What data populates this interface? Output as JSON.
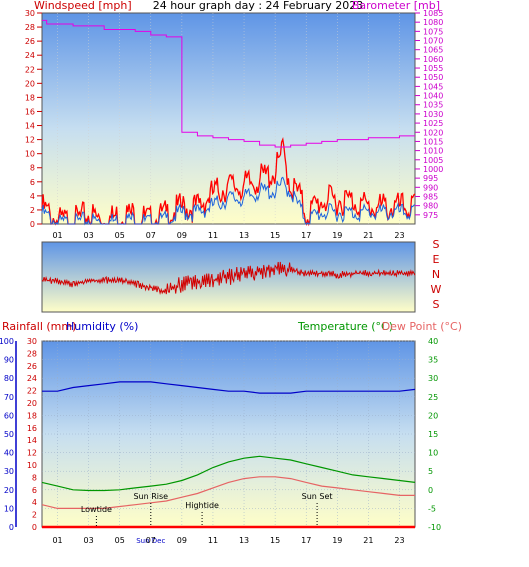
{
  "chart_data": [
    {
      "type": "line",
      "title": "24 hour graph day : 24 February 2023",
      "ylabel": "Windspeed [mph]",
      "y2label": "Barometer [mb]",
      "ylim": [
        0,
        30
      ],
      "y2lim": [
        970,
        1085
      ],
      "yticks": [
        0,
        2,
        4,
        6,
        8,
        10,
        12,
        14,
        16,
        18,
        20,
        22,
        24,
        26,
        28,
        30
      ],
      "yticklabels": [
        "0",
        "2",
        "4",
        "6",
        "8",
        "10",
        "12",
        "14",
        "16",
        "18",
        "20",
        "22",
        "24",
        "26",
        "28",
        "30"
      ],
      "y2ticks": [
        975,
        980,
        985,
        990,
        995,
        1000,
        1005,
        1010,
        1015,
        1020,
        1025,
        1030,
        1035,
        1040,
        1045,
        1050,
        1055,
        1060,
        1065,
        1070,
        1075,
        1080,
        1085
      ],
      "y2ticklabels": [
        "975",
        "980",
        "985",
        "990",
        "995",
        "1000",
        "1005",
        "1010",
        "1015",
        "1020",
        "1025",
        "1030",
        "1035",
        "1040",
        "1045",
        "1050",
        "1055",
        "1060",
        "1065",
        "1070",
        "1075",
        "1080",
        "1085"
      ],
      "xticklabels": [
        "01",
        "03",
        "05",
        "07",
        "09",
        "11",
        "13",
        "15",
        "17",
        "19",
        "21",
        "23"
      ],
      "xlim": [
        0,
        24
      ],
      "series": [
        {
          "key": "gust",
          "color": "#ff0000",
          "x": [
            0,
            1,
            2,
            3,
            4,
            5,
            6,
            7,
            8,
            9,
            10,
            11,
            12,
            13,
            14,
            15,
            15.5,
            16,
            16.5,
            17,
            18,
            19,
            20,
            21,
            22,
            23,
            24
          ],
          "y": [
            3,
            1,
            1,
            2,
            1,
            2,
            2,
            1,
            2,
            3,
            3,
            5,
            6,
            6,
            7,
            8,
            11,
            6,
            5,
            2,
            4,
            4,
            4,
            3,
            3,
            3,
            3
          ]
        },
        {
          "key": "average",
          "color": "#1e64dc",
          "x": [
            0,
            1,
            2,
            3,
            4,
            5,
            6,
            7,
            8,
            9,
            10,
            11,
            12,
            13,
            14,
            15,
            15.5,
            16,
            16.5,
            17,
            18,
            19,
            20,
            21,
            22,
            23,
            24
          ],
          "y": [
            2,
            0.5,
            0.5,
            1,
            0.5,
            1,
            1,
            0.5,
            1,
            2,
            2,
            3,
            4,
            4,
            5,
            5,
            6,
            5,
            3,
            1,
            2,
            2,
            2,
            2,
            2,
            2,
            2
          ]
        },
        {
          "key": "barometer",
          "axis": "y2",
          "color": "#e600e6",
          "x": [
            0,
            0.3,
            2,
            4,
            6,
            7,
            8,
            9,
            10,
            11,
            12,
            13,
            14,
            15,
            16,
            17,
            18,
            19,
            20,
            21,
            22,
            23,
            24
          ],
          "y": [
            1081,
            1079,
            1078,
            1076,
            1075,
            1073,
            1072,
            1020,
            1018,
            1017,
            1016,
            1015,
            1013,
            1012,
            1013,
            1014,
            1015,
            1016,
            1016,
            1017,
            1017,
            1018,
            1018
          ]
        }
      ]
    },
    {
      "type": "line",
      "title": "",
      "right_labels": [
        "S",
        "E",
        "N",
        "W",
        "S"
      ],
      "xlim": [
        0,
        24
      ],
      "series": [
        {
          "key": "wind-direction",
          "color": "#d20000",
          "x": [
            0,
            1,
            2,
            3,
            4,
            5,
            6,
            7,
            8,
            9,
            10,
            11,
            12,
            13,
            14,
            15,
            16,
            17,
            18,
            19,
            20,
            21,
            22,
            23,
            24
          ],
          "y": [
            0.55,
            0.55,
            0.6,
            0.55,
            0.55,
            0.55,
            0.6,
            0.65,
            0.72,
            0.6,
            0.58,
            0.55,
            0.5,
            0.45,
            0.42,
            0.38,
            0.4,
            0.45,
            0.45,
            0.47,
            0.45,
            0.45,
            0.45,
            0.45,
            0.45
          ]
        }
      ]
    },
    {
      "type": "line",
      "title": "",
      "ylabel_left_1": "Rainfall (mm)",
      "ylabel_left_2": "Humidity (%)",
      "ylabel_right_1": "Temperature (°C)",
      "ylabel_right_2": "Dew Point (°C)",
      "ylim_humidity": [
        0,
        100
      ],
      "ylim_rain": [
        0,
        30
      ],
      "ylim_temp": [
        -10,
        40
      ],
      "humidity_ticks": [
        0,
        10,
        20,
        30,
        40,
        50,
        60,
        70,
        80,
        90,
        100
      ],
      "humidity_ticklabels": [
        "0",
        "10",
        "20",
        "30",
        "40",
        "50",
        "60",
        "70",
        "80",
        "90",
        "100"
      ],
      "rain_ticks": [
        0,
        2,
        4,
        6,
        8,
        10,
        12,
        14,
        16,
        18,
        20,
        22,
        24,
        26,
        28,
        30
      ],
      "rain_ticklabels": [
        "0",
        "2",
        "4",
        "6",
        "8",
        "10",
        "12",
        "14",
        "16",
        "18",
        "20",
        "22",
        "24",
        "26",
        "28",
        "30"
      ],
      "temp_ticks": [
        -10,
        -5,
        0,
        5,
        10,
        15,
        20,
        25,
        30,
        35,
        40
      ],
      "temp_ticklabels": [
        "-10",
        "-5",
        "0",
        "5",
        "10",
        "15",
        "20",
        "25",
        "30",
        "35",
        "40"
      ],
      "xticklabels": [
        "01",
        "03",
        "05",
        "07",
        "09",
        "11",
        "13",
        "15",
        "17",
        "19",
        "21",
        "23"
      ],
      "xlim": [
        0,
        24
      ],
      "series": [
        {
          "key": "humidity",
          "color": "#0000c8",
          "x": [
            0,
            1,
            2,
            3,
            4,
            5,
            6,
            7,
            8,
            9,
            10,
            11,
            12,
            13,
            14,
            15,
            16,
            17,
            18,
            19,
            20,
            21,
            22,
            23,
            24
          ],
          "y": [
            73,
            73,
            75,
            76,
            77,
            78,
            78,
            78,
            77,
            76,
            75,
            74,
            73,
            73,
            72,
            72,
            72,
            73,
            73,
            73,
            73,
            73,
            73,
            73,
            74
          ]
        },
        {
          "key": "temperature",
          "color": "#009600",
          "x": [
            0,
            1,
            2,
            3,
            4,
            5,
            6,
            7,
            8,
            9,
            10,
            11,
            12,
            13,
            14,
            15,
            16,
            17,
            18,
            19,
            20,
            21,
            22,
            23,
            24
          ],
          "y": [
            2,
            1,
            0,
            -0.2,
            -0.2,
            0,
            0.5,
            1,
            1.5,
            2.5,
            4,
            6,
            7.5,
            8.5,
            9,
            8.5,
            8,
            7,
            6,
            5,
            4,
            3.5,
            3,
            2.5,
            2
          ]
        },
        {
          "key": "dew-point",
          "color": "#e66464",
          "x": [
            0,
            1,
            2,
            3,
            4,
            5,
            6,
            7,
            8,
            9,
            10,
            11,
            12,
            13,
            14,
            15,
            16,
            17,
            18,
            19,
            20,
            21,
            22,
            23,
            24
          ],
          "y": [
            -4,
            -5,
            -5,
            -5,
            -5,
            -4.5,
            -4,
            -3.5,
            -3,
            -2,
            -1,
            0.5,
            2,
            3,
            3.5,
            3.5,
            3,
            2,
            1,
            0.5,
            0,
            -0.5,
            -1,
            -1.5,
            -1.5
          ]
        },
        {
          "key": "rainfall",
          "color": "#ff0000",
          "x": [
            0,
            24
          ],
          "y": [
            0,
            0
          ]
        }
      ],
      "annotations": [
        {
          "label": "Lowtide",
          "x": 3.5
        },
        {
          "label": "Sun Rise",
          "x": 7.0
        },
        {
          "label": "Hightide",
          "x": 10.3
        },
        {
          "label": "Sun Set",
          "x": 17.7
        },
        {
          "label": "Sun Dec",
          "x": 7.0
        }
      ]
    }
  ]
}
